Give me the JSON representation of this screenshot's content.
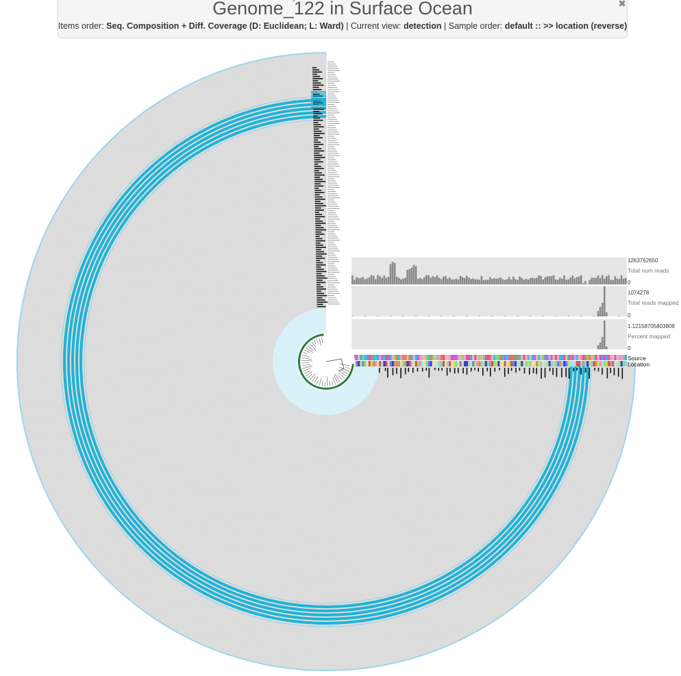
{
  "header": {
    "title": "Genome_122 in Surface Ocean",
    "items_order_label": "Items order:",
    "items_order_value": "Seq. Composition + Diff. Coverage (D: Euclidean; L: Ward)",
    "separator": "|",
    "current_view_label": "Current view:",
    "current_view_value": "detection",
    "sample_order_label": "Sample order:",
    "sample_order_value": "default :: >> location (reverse)",
    "close_icon": "close-icon"
  },
  "sample_bars": [
    {
      "name": "Total num reads",
      "max_label": "1263762650",
      "min_label": "0"
    },
    {
      "name": "Total reads mapped",
      "max_label": "1074278",
      "min_label": "0"
    },
    {
      "name": "Percent mapped",
      "max_label": "1.12158705803809",
      "min_label": "0"
    }
  ],
  "sample_rows": [
    {
      "name": "Source"
    },
    {
      "name": "Location"
    }
  ],
  "colors": {
    "ring_gray": "#d9d9d9",
    "detection_blue": "#1fb3d6",
    "light_blue": "#d9f1f9",
    "bar_gray": "#8a8a8a",
    "panel_bg": "#f5f5f5"
  }
}
